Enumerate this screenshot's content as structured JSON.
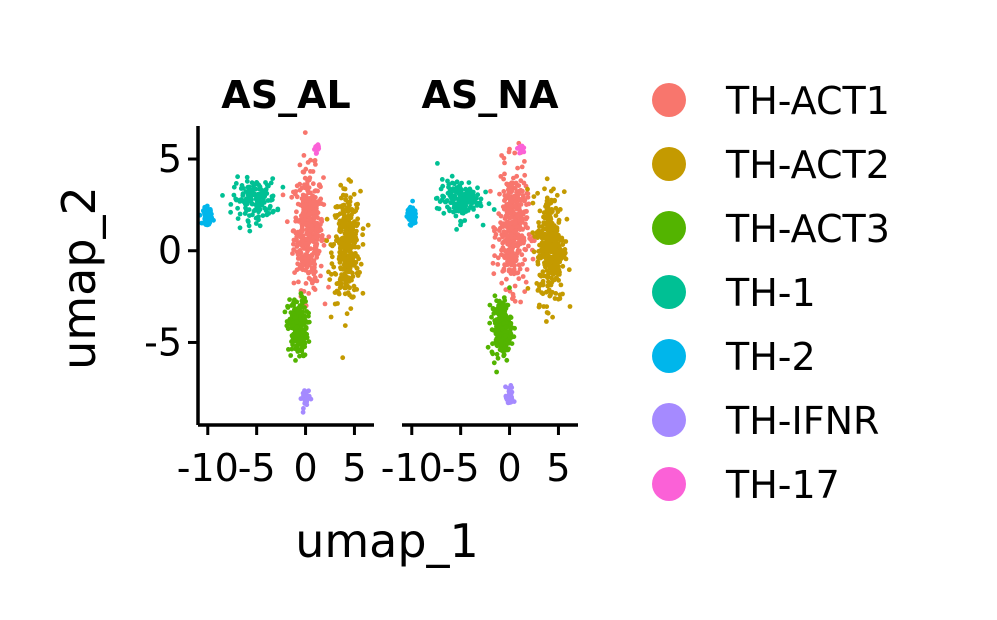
{
  "chart_data": {
    "type": "scatter",
    "xlabel": "umap_1",
    "ylabel": "umap_2",
    "xlim": [
      -11,
      7
    ],
    "ylim": [
      -9.5,
      6.8
    ],
    "xticks": [
      -10,
      -5,
      0,
      5
    ],
    "yticks": [
      5,
      0,
      -5
    ],
    "xtick_labels": [
      "-10",
      "-5",
      "0",
      "5"
    ],
    "ytick_labels": [
      "5",
      "0",
      "-5"
    ],
    "facets": [
      "AS_AL",
      "AS_NA"
    ],
    "legend_position": "right",
    "grid": false,
    "series": [
      {
        "name": "TH-ACT1",
        "color": "#F8766D",
        "center": [
          0.3,
          1.2
        ],
        "spread": [
          1.5,
          3.2
        ],
        "n": 380
      },
      {
        "name": "TH-ACT2",
        "color": "#C49A00",
        "center": [
          4.2,
          0.2
        ],
        "spread": [
          1.4,
          3.0
        ],
        "n": 330
      },
      {
        "name": "TH-ACT3",
        "color": "#53B400",
        "center": [
          -0.8,
          -4.2
        ],
        "spread": [
          1.0,
          1.6
        ],
        "n": 200
      },
      {
        "name": "TH-1",
        "color": "#00C094",
        "center": [
          -5.2,
          2.8
        ],
        "spread": [
          2.2,
          1.1
        ],
        "n": 150
      },
      {
        "name": "TH-2",
        "color": "#00B6EB",
        "center": [
          -10.0,
          1.9
        ],
        "spread": [
          0.45,
          0.45
        ],
        "n": 70
      },
      {
        "name": "TH-IFNR",
        "color": "#A58AFF",
        "center": [
          0.0,
          -8.0
        ],
        "spread": [
          0.4,
          0.55
        ],
        "n": 35
      },
      {
        "name": "TH-17",
        "color": "#FB61D7",
        "center": [
          1.1,
          5.6
        ],
        "spread": [
          0.3,
          0.25
        ],
        "n": 12
      }
    ]
  }
}
